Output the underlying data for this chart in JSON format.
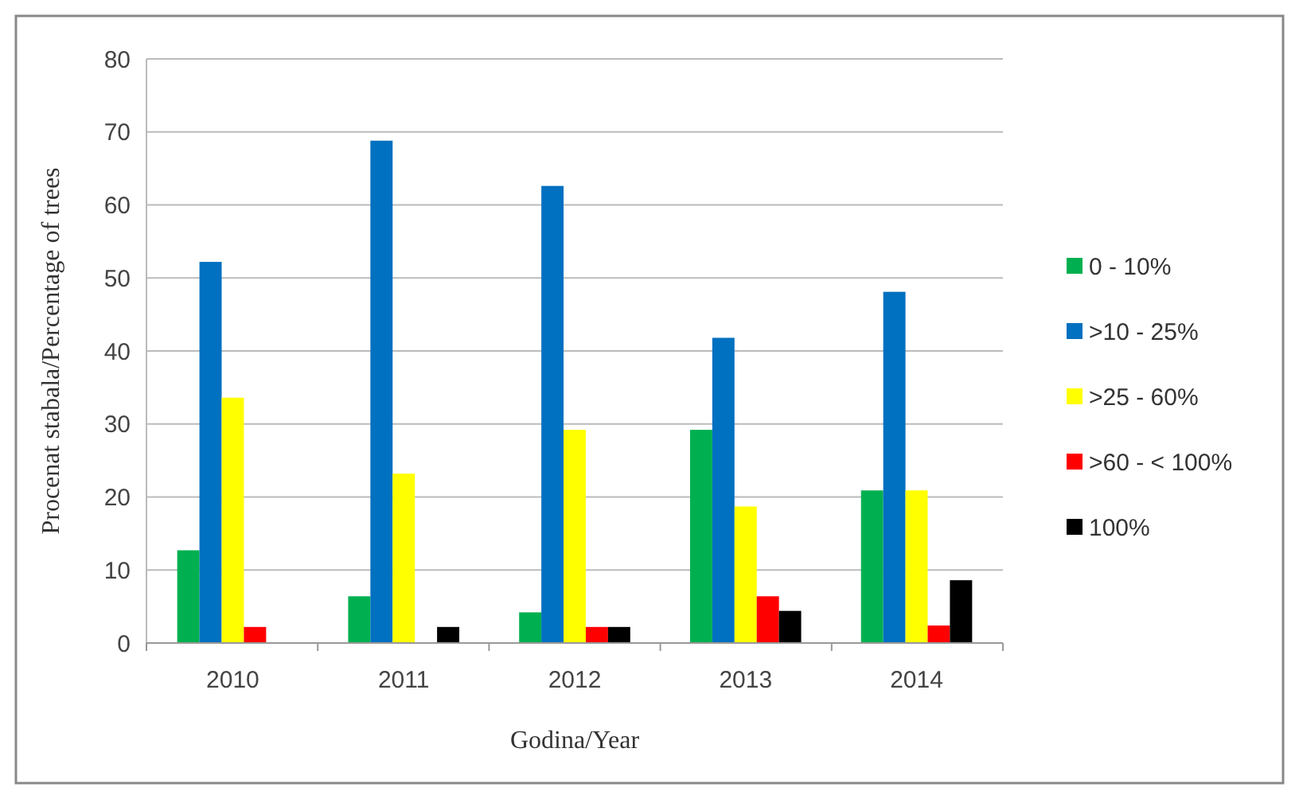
{
  "chart_data": {
    "type": "bar",
    "xlabel": "Godina/Year",
    "ylabel": "Procenat stabala/Percentage of trees",
    "categories": [
      "2010",
      "2011",
      "2012",
      "2013",
      "2014"
    ],
    "series": [
      {
        "name": "0 - 10%",
        "color": "#00b050",
        "values": [
          12.7,
          6.4,
          4.2,
          29.2,
          20.9
        ]
      },
      {
        "name": ">10 - 25%",
        "color": "#0070c0",
        "values": [
          52.2,
          68.8,
          62.6,
          41.8,
          48.1
        ]
      },
      {
        "name": ">25 - 60%",
        "color": "#ffff00",
        "values": [
          33.6,
          23.2,
          29.2,
          18.7,
          20.9
        ]
      },
      {
        "name": ">60 - < 100%",
        "color": "#ff0000",
        "values": [
          2.2,
          0,
          2.2,
          6.4,
          2.4
        ]
      },
      {
        "name": "100%",
        "color": "#000000",
        "values": [
          0,
          2.2,
          2.2,
          4.4,
          8.6
        ]
      }
    ],
    "ylim": [
      0,
      80
    ],
    "yticks": [
      0,
      10,
      20,
      30,
      40,
      50,
      60,
      70,
      80
    ],
    "grid": "y",
    "legend": "right"
  }
}
